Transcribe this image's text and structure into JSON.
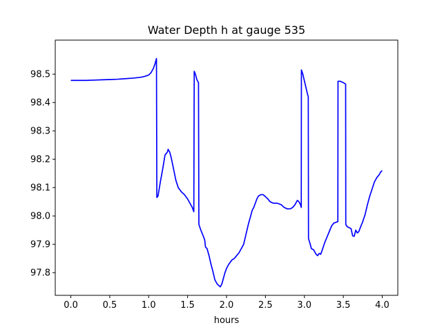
{
  "chart_data": {
    "type": "line",
    "title": "Water Depth h at gauge 535",
    "xlabel": "hours",
    "ylabel": "",
    "xlim": [
      -0.2,
      4.2
    ],
    "ylim": [
      97.72,
      98.62
    ],
    "xticks": [
      0.0,
      0.5,
      1.0,
      1.5,
      2.0,
      2.5,
      3.0,
      3.5,
      4.0
    ],
    "xtick_labels": [
      "0.0",
      "0.5",
      "1.0",
      "1.5",
      "2.0",
      "2.5",
      "3.0",
      "3.5",
      "4.0"
    ],
    "yticks": [
      97.8,
      97.9,
      98.0,
      98.1,
      98.2,
      98.3,
      98.4,
      98.5
    ],
    "ytick_labels": [
      "97.8",
      "97.9",
      "98.0",
      "98.1",
      "98.2",
      "98.3",
      "98.4",
      "98.5"
    ],
    "grid": false,
    "series": [
      {
        "color": "#0000ff",
        "points": [
          [
            0.0,
            98.478
          ],
          [
            0.1,
            98.478
          ],
          [
            0.2,
            98.478
          ],
          [
            0.3,
            98.479
          ],
          [
            0.4,
            98.48
          ],
          [
            0.5,
            98.481
          ],
          [
            0.6,
            98.482
          ],
          [
            0.7,
            98.484
          ],
          [
            0.8,
            98.486
          ],
          [
            0.9,
            98.489
          ],
          [
            0.95,
            98.492
          ],
          [
            1.0,
            98.497
          ],
          [
            1.03,
            98.505
          ],
          [
            1.06,
            98.52
          ],
          [
            1.08,
            98.535
          ],
          [
            1.1,
            98.555
          ],
          [
            1.105,
            98.065
          ],
          [
            1.12,
            98.07
          ],
          [
            1.15,
            98.12
          ],
          [
            1.18,
            98.165
          ],
          [
            1.21,
            98.215
          ],
          [
            1.24,
            98.225
          ],
          [
            1.25,
            98.235
          ],
          [
            1.27,
            98.225
          ],
          [
            1.29,
            98.205
          ],
          [
            1.32,
            98.165
          ],
          [
            1.35,
            98.125
          ],
          [
            1.38,
            98.1
          ],
          [
            1.42,
            98.085
          ],
          [
            1.46,
            98.075
          ],
          [
            1.5,
            98.06
          ],
          [
            1.53,
            98.045
          ],
          [
            1.56,
            98.03
          ],
          [
            1.58,
            98.015
          ],
          [
            1.585,
            98.51
          ],
          [
            1.6,
            98.5
          ],
          [
            1.62,
            98.48
          ],
          [
            1.64,
            98.47
          ],
          [
            1.645,
            97.97
          ],
          [
            1.67,
            97.95
          ],
          [
            1.7,
            97.93
          ],
          [
            1.72,
            97.915
          ],
          [
            1.73,
            97.89
          ],
          [
            1.75,
            97.885
          ],
          [
            1.78,
            97.855
          ],
          [
            1.8,
            97.83
          ],
          [
            1.82,
            97.81
          ],
          [
            1.85,
            97.775
          ],
          [
            1.88,
            97.76
          ],
          [
            1.9,
            97.755
          ],
          [
            1.92,
            97.75
          ],
          [
            1.94,
            97.76
          ],
          [
            1.96,
            97.78
          ],
          [
            1.98,
            97.8
          ],
          [
            2.0,
            97.815
          ],
          [
            2.03,
            97.83
          ],
          [
            2.07,
            97.845
          ],
          [
            2.1,
            97.85
          ],
          [
            2.13,
            97.86
          ],
          [
            2.16,
            97.87
          ],
          [
            2.19,
            97.885
          ],
          [
            2.22,
            97.9
          ],
          [
            2.25,
            97.935
          ],
          [
            2.28,
            97.97
          ],
          [
            2.31,
            98.0
          ],
          [
            2.33,
            98.02
          ],
          [
            2.35,
            98.03
          ],
          [
            2.37,
            98.045
          ],
          [
            2.39,
            98.06
          ],
          [
            2.41,
            98.07
          ],
          [
            2.44,
            98.075
          ],
          [
            2.47,
            98.075
          ],
          [
            2.5,
            98.068
          ],
          [
            2.53,
            98.06
          ],
          [
            2.56,
            98.05
          ],
          [
            2.6,
            98.045
          ],
          [
            2.65,
            98.045
          ],
          [
            2.7,
            98.04
          ],
          [
            2.74,
            98.03
          ],
          [
            2.78,
            98.025
          ],
          [
            2.82,
            98.025
          ],
          [
            2.85,
            98.03
          ],
          [
            2.88,
            98.04
          ],
          [
            2.91,
            98.055
          ],
          [
            2.93,
            98.05
          ],
          [
            2.95,
            98.04
          ],
          [
            2.96,
            98.03
          ],
          [
            2.962,
            98.515
          ],
          [
            2.98,
            98.5
          ],
          [
            3.01,
            98.465
          ],
          [
            3.04,
            98.43
          ],
          [
            3.05,
            98.42
          ],
          [
            3.053,
            97.92
          ],
          [
            3.07,
            97.905
          ],
          [
            3.09,
            97.885
          ],
          [
            3.12,
            97.88
          ],
          [
            3.15,
            97.865
          ],
          [
            3.17,
            97.86
          ],
          [
            3.19,
            97.868
          ],
          [
            3.21,
            97.865
          ],
          [
            3.23,
            97.88
          ],
          [
            3.26,
            97.905
          ],
          [
            3.29,
            97.925
          ],
          [
            3.32,
            97.945
          ],
          [
            3.35,
            97.965
          ],
          [
            3.38,
            97.975
          ],
          [
            3.41,
            97.978
          ],
          [
            3.43,
            97.98
          ],
          [
            3.432,
            98.475
          ],
          [
            3.46,
            98.475
          ],
          [
            3.5,
            98.47
          ],
          [
            3.53,
            98.465
          ],
          [
            3.532,
            97.97
          ],
          [
            3.55,
            97.962
          ],
          [
            3.58,
            97.958
          ],
          [
            3.6,
            97.955
          ],
          [
            3.62,
            97.93
          ],
          [
            3.64,
            97.928
          ],
          [
            3.66,
            97.95
          ],
          [
            3.68,
            97.94
          ],
          [
            3.7,
            97.945
          ],
          [
            3.72,
            97.96
          ],
          [
            3.75,
            97.98
          ],
          [
            3.78,
            98.005
          ],
          [
            3.81,
            98.04
          ],
          [
            3.84,
            98.07
          ],
          [
            3.87,
            98.095
          ],
          [
            3.9,
            98.12
          ],
          [
            3.93,
            98.135
          ],
          [
            3.96,
            98.145
          ],
          [
            3.98,
            98.155
          ],
          [
            4.0,
            98.16
          ]
        ]
      }
    ]
  }
}
